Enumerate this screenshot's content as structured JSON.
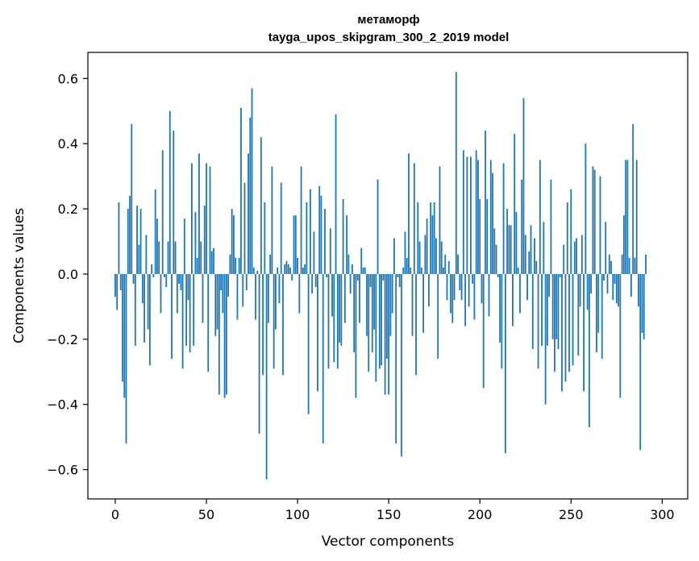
{
  "chart_data": {
    "type": "bar",
    "title": "метаморф",
    "subtitle": "tayga_upos_skipgram_300_2_2019 model",
    "xlabel": "Vector components",
    "ylabel": "Components values",
    "xlim": [
      -15,
      314
    ],
    "ylim": [
      -0.69,
      0.68
    ],
    "xticks": [
      0,
      50,
      100,
      150,
      200,
      250,
      300
    ],
    "yticks": [
      -0.6,
      -0.4,
      -0.2,
      0.0,
      0.2,
      0.4,
      0.6
    ],
    "ytick_labels": [
      "−0.6",
      "−0.4",
      "−0.2",
      "0.0",
      "0.2",
      "0.4",
      "0.6"
    ],
    "xtick_labels": [
      "0",
      "50",
      "100",
      "150",
      "200",
      "250",
      "300"
    ],
    "bar_color": "#1f77b4",
    "grid": false,
    "values": [
      -0.07,
      -0.11,
      0.22,
      -0.05,
      -0.33,
      -0.38,
      -0.52,
      0.2,
      0.24,
      0.46,
      -0.03,
      -0.22,
      0.21,
      0.09,
      0.2,
      -0.09,
      -0.21,
      0.12,
      -0.17,
      -0.28,
      0.03,
      -0.01,
      0.26,
      0.17,
      0.1,
      -0.12,
      0.38,
      -0.01,
      -0.04,
      0.1,
      0.5,
      -0.26,
      0.44,
      0.1,
      -0.12,
      -0.03,
      -0.05,
      -0.29,
      0.17,
      -0.22,
      -0.08,
      -0.24,
      0.34,
      -0.22,
      0.19,
      0.05,
      0.37,
      0.1,
      -0.15,
      0.21,
      0.34,
      -0.3,
      0.33,
      0.07,
      0.08,
      -0.19,
      -0.17,
      -0.37,
      -0.05,
      -0.12,
      -0.38,
      -0.37,
      -0.07,
      0.06,
      0.2,
      0.18,
      0.05,
      -0.14,
      0.05,
      0.51,
      -0.1,
      0.28,
      -0.05,
      0.37,
      0.48,
      0.57,
      0.02,
      -0.14,
      0.01,
      -0.49,
      0.42,
      -0.31,
      0.22,
      -0.63,
      -0.15,
      0.06,
      0.33,
      -0.29,
      -0.17,
      0.02,
      -0.09,
      0.28,
      -0.31,
      0.03,
      0.04,
      0.03,
      0.02,
      -0.02,
      0.18,
      0.18,
      0.05,
      -0.12,
      0.33,
      0.02,
      0.03,
      0.22,
      -0.43,
      0.26,
      -0.06,
      0.13,
      -0.04,
      -0.36,
      0.27,
      0.24,
      -0.52,
      0.2,
      -0.01,
      -0.29,
      0.14,
      -0.13,
      -0.27,
      0.49,
      -0.29,
      -0.21,
      -0.22,
      0.23,
      -0.15,
      0.18,
      0.06,
      -0.06,
      0.03,
      -0.24,
      -0.38,
      -0.02,
      -0.15,
      0.08,
      0.02,
      0.02,
      -0.19,
      -0.3,
      -0.04,
      -0.24,
      -0.17,
      -0.33,
      0.29,
      -0.29,
      -0.28,
      -0.02,
      -0.37,
      -0.26,
      -0.37,
      -0.19,
      -0.12,
      0.11,
      -0.52,
      -0.01,
      -0.04,
      -0.56,
      0.02,
      0.13,
      0.05,
      0.37,
      0.02,
      -0.19,
      0.34,
      -0.31,
      0.22,
      0.1,
      0.02,
      -0.18,
      0.12,
      0.17,
      -0.1,
      0.22,
      0.18,
      0.22,
      0.11,
      -0.26,
      0.33,
      0.1,
      0.02,
      0.06,
      -0.08,
      0.04,
      -0.12,
      -0.15,
      -0.08,
      0.62,
      0.06,
      -0.05,
      -0.08,
      0.38,
      -0.16,
      0.36,
      -0.1,
      0.36,
      -0.03,
      -0.14,
      0.38,
      0.35,
      0.23,
      -0.09,
      -0.35,
      0.44,
      0.23,
      -0.13,
      0.35,
      0.31,
      0.14,
      0.09,
      -0.01,
      -0.21,
      -0.29,
      0.34,
      -0.55,
      0.2,
      0.15,
      0.15,
      -0.16,
      0.43,
      0.19,
      0.02,
      -0.12,
      0.29,
      0.54,
      0.12,
      -0.08,
      0.07,
      0.15,
      -0.23,
      0.11,
      0.04,
      -0.29,
      0.35,
      -0.22,
      0.16,
      -0.4,
      -0.22,
      -0.07,
      0.29,
      -0.2,
      -0.3,
      -0.2,
      -0.23,
      -0.01,
      -0.36,
      0.09,
      -0.33,
      0.22,
      -0.3,
      0.26,
      -0.28,
      0.1,
      0.11,
      -0.25,
      -0.1,
      0.12,
      -0.36,
      0.4,
      -0.11,
      -0.47,
      -0.06,
      0.33,
      0.32,
      -0.24,
      -0.18,
      0.3,
      -0.26,
      -0.02,
      0.16,
      -0.06,
      0.06,
      0.04,
      -0.08,
      -0.03,
      -0.09,
      -0.1,
      -0.38,
      0.06,
      0.18,
      0.35,
      0.35,
      0.05,
      -0.07,
      0.46,
      0.05,
      0.35,
      -0.1,
      -0.54,
      -0.18,
      -0.2,
      0.06
    ]
  }
}
